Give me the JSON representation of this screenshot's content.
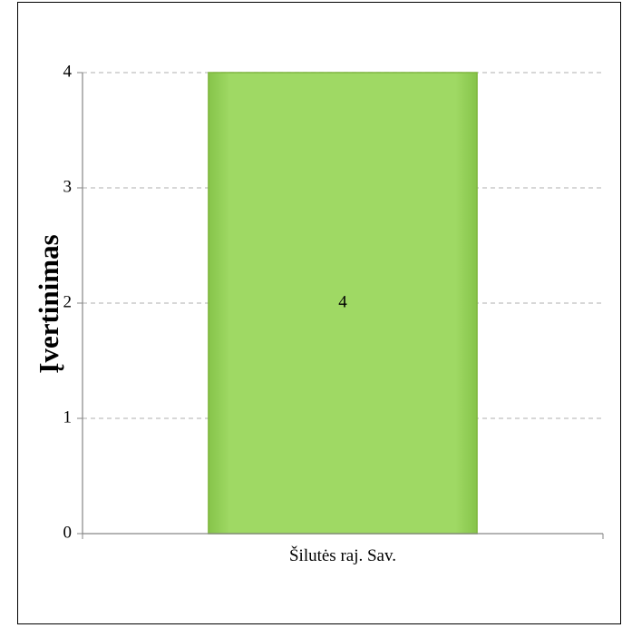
{
  "chart_data": {
    "type": "bar",
    "categories": [
      "Šilutės raj. Sav."
    ],
    "values": [
      4
    ],
    "data_labels": [
      "4"
    ],
    "title": "",
    "xlabel": "",
    "ylabel": "Įvertinimas",
    "ylim": [
      0,
      4
    ],
    "yticks": [
      "0",
      "1",
      "2",
      "3",
      "4"
    ],
    "grid": true,
    "legend": "none",
    "colors": {
      "bar_fill": "#9ed65c",
      "bar_edge": "#7fb63e",
      "grid": "#bfbfbf",
      "axis": "#868686"
    }
  }
}
